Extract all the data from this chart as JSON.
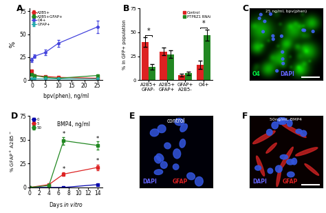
{
  "panel_A": {
    "title": "A",
    "xlabel": "bpv(phen), ng/ml",
    "ylabel": "%",
    "xlim": [
      -1,
      27
    ],
    "ylim": [
      0,
      78
    ],
    "yticks": [
      0,
      25,
      50,
      75
    ],
    "xticks": [
      0,
      5,
      10,
      15,
      20,
      25
    ],
    "series": [
      {
        "label": "A2B5+",
        "color": "#dd2222",
        "marker": "s",
        "x": [
          0,
          1,
          5,
          10,
          25
        ],
        "y": [
          10,
          5,
          4,
          3,
          2
        ],
        "yerr": [
          1.5,
          1,
          0.8,
          0.7,
          0.5
        ]
      },
      {
        "label": "A2B5+GFAP+",
        "color": "#228822",
        "marker": "s",
        "x": [
          0,
          1,
          5,
          10,
          25
        ],
        "y": [
          6,
          5,
          3,
          2,
          5
        ],
        "yerr": [
          1.0,
          0.8,
          0.6,
          0.4,
          1.0
        ]
      },
      {
        "label": "O4+",
        "color": "#4444dd",
        "marker": "o",
        "x": [
          0,
          1,
          5,
          10,
          25
        ],
        "y": [
          22,
          26,
          30,
          40,
          58
        ],
        "yerr": [
          2.5,
          2,
          3,
          4,
          7
        ]
      },
      {
        "label": "GFAP+",
        "color": "#22aaaa",
        "marker": "o",
        "x": [
          0,
          1,
          5,
          10,
          25
        ],
        "y": [
          2,
          2,
          2,
          2,
          2
        ],
        "yerr": [
          0.4,
          0.4,
          0.4,
          0.4,
          0.4
        ]
      }
    ]
  },
  "panel_B": {
    "title": "B",
    "ylabel": "% in GFP+ population",
    "xlim": [
      -0.5,
      3.5
    ],
    "ylim": [
      0,
      75
    ],
    "yticks": [
      0,
      25,
      50,
      75
    ],
    "categories": [
      "A2B5+\nGFAP-",
      "A2B5+\nGFAP+",
      "GFAP+\nA2B5-",
      "O4+"
    ],
    "control_values": [
      40,
      30,
      5,
      16
    ],
    "control_errors": [
      5,
      4,
      1.5,
      4
    ],
    "rnai_values": [
      14,
      27,
      7,
      47
    ],
    "rnai_errors": [
      3,
      4,
      2,
      6
    ]
  },
  "panel_C": {
    "title": "C",
    "text": "25 ng/ml, bpv(phen)",
    "label1": "O4",
    "label2": "DAPI",
    "color1": "#00ee44",
    "color2": "#6666ff",
    "bg_color": "#001800"
  },
  "panel_D": {
    "title": "D",
    "annotation": "BMP4, ng/ml",
    "xlim": [
      0,
      15
    ],
    "ylim": [
      0,
      75
    ],
    "yticks": [
      0,
      25,
      50,
      75
    ],
    "xticks": [
      0,
      2,
      4,
      6,
      8,
      10,
      12,
      14
    ],
    "series": [
      {
        "label": "0",
        "color": "#0000aa",
        "marker": "s",
        "x": [
          0,
          4,
          7,
          14
        ],
        "y": [
          0,
          0,
          0,
          3
        ],
        "yerr": [
          0,
          0,
          0,
          0.5
        ]
      },
      {
        "label": "5",
        "color": "#dd2222",
        "marker": "s",
        "x": [
          0,
          4,
          7,
          14
        ],
        "y": [
          0,
          3,
          14,
          21
        ],
        "yerr": [
          0,
          1,
          2,
          3
        ]
      },
      {
        "label": "50",
        "color": "#228822",
        "marker": "s",
        "x": [
          0,
          4,
          7,
          14
        ],
        "y": [
          0,
          2,
          49,
          44
        ],
        "yerr": [
          0,
          0.5,
          4,
          4
        ]
      }
    ]
  },
  "panel_E": {
    "title": "E",
    "text": "control",
    "label1": "DAPI",
    "label2": "GFAP",
    "color1": "#6666ff",
    "color2": "#dd2222",
    "bg_color": "#000008"
  },
  "panel_F": {
    "title": "F",
    "text": "50ng/ml, BMP4",
    "label1": "DAPI",
    "label2": "GFAP",
    "color1": "#6666ff",
    "color2": "#dd2222",
    "bg_color": "#080000"
  }
}
